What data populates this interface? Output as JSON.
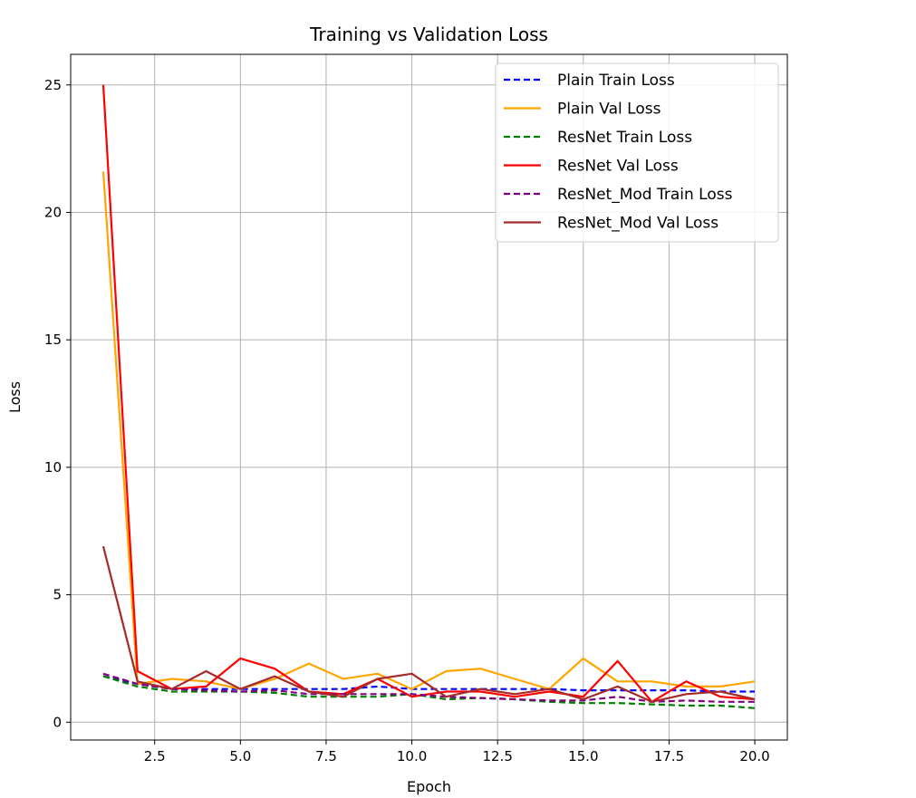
{
  "chart_data": {
    "type": "line",
    "title": "Training vs Validation Loss",
    "xlabel": "Epoch",
    "ylabel": "Loss",
    "xlim": [
      0.05,
      20.95
    ],
    "ylim": [
      -0.7,
      26.2
    ],
    "xticks": [
      2.5,
      5.0,
      7.5,
      10.0,
      12.5,
      15.0,
      17.5,
      20.0
    ],
    "xtick_labels": [
      "2.5",
      "5.0",
      "7.5",
      "10.0",
      "12.5",
      "15.0",
      "17.5",
      "20.0"
    ],
    "yticks": [
      0,
      5,
      10,
      15,
      20,
      25
    ],
    "ytick_labels": [
      "0",
      "5",
      "10",
      "15",
      "20",
      "25"
    ],
    "grid": true,
    "legend_position": "top-right",
    "x": [
      1,
      2,
      3,
      4,
      5,
      6,
      7,
      8,
      9,
      10,
      11,
      12,
      13,
      14,
      15,
      16,
      17,
      18,
      19,
      20
    ],
    "series": [
      {
        "name": "Plain Train Loss",
        "color": "#0000ff",
        "dashed": true,
        "values": [
          1.8,
          1.5,
          1.3,
          1.3,
          1.3,
          1.3,
          1.3,
          1.3,
          1.4,
          1.3,
          1.3,
          1.3,
          1.3,
          1.3,
          1.25,
          1.25,
          1.25,
          1.25,
          1.2,
          1.2
        ]
      },
      {
        "name": "Plain Val Loss",
        "color": "#ffa500",
        "dashed": false,
        "values": [
          21.6,
          1.5,
          1.7,
          1.6,
          1.3,
          1.7,
          2.3,
          1.7,
          1.9,
          1.3,
          2.0,
          2.1,
          1.7,
          1.3,
          2.5,
          1.6,
          1.6,
          1.4,
          1.4,
          1.6
        ]
      },
      {
        "name": "ResNet Train Loss",
        "color": "#008000",
        "dashed": true,
        "values": [
          1.8,
          1.4,
          1.2,
          1.2,
          1.2,
          1.15,
          1.0,
          1.0,
          1.0,
          1.1,
          0.9,
          0.95,
          0.9,
          0.8,
          0.75,
          0.75,
          0.7,
          0.65,
          0.65,
          0.55
        ]
      },
      {
        "name": "ResNet Val Loss",
        "color": "#ff0000",
        "dashed": false,
        "values": [
          25.0,
          2.0,
          1.3,
          1.4,
          2.5,
          2.1,
          1.2,
          1.1,
          1.7,
          1.0,
          1.2,
          1.2,
          1.0,
          1.2,
          1.0,
          2.4,
          0.8,
          1.6,
          1.0,
          0.9
        ]
      },
      {
        "name": "ResNet_Mod Train Loss",
        "color": "#800080",
        "dashed": true,
        "values": [
          1.9,
          1.5,
          1.3,
          1.25,
          1.2,
          1.25,
          1.1,
          1.1,
          1.1,
          1.1,
          1.0,
          0.95,
          0.9,
          0.85,
          0.85,
          1.0,
          0.8,
          0.85,
          0.8,
          0.8
        ]
      },
      {
        "name": "ResNet_Mod Val Loss",
        "color": "#a52a2a",
        "dashed": false,
        "values": [
          6.9,
          1.6,
          1.3,
          2.0,
          1.3,
          1.8,
          1.2,
          1.0,
          1.7,
          1.9,
          1.0,
          1.3,
          1.1,
          1.3,
          0.9,
          1.4,
          0.8,
          1.1,
          1.2,
          0.9
        ]
      }
    ]
  }
}
